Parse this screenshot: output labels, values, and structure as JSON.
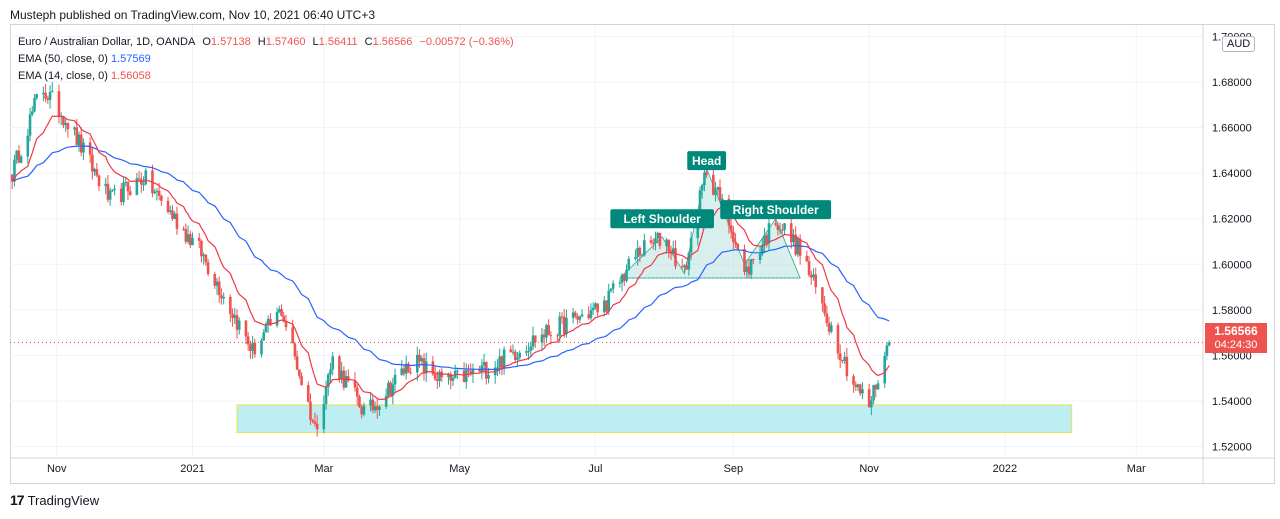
{
  "header": {
    "published": "Musteph published on TradingView.com, Nov 10, 2021 06:40 UTC+3"
  },
  "legend": {
    "symbol": "Euro / Australian Dollar, 1D, OANDA",
    "open_key": "O",
    "open": "1.57138",
    "high_key": "H",
    "high": "1.57460",
    "low_key": "L",
    "low": "1.56411",
    "close_key": "C",
    "close": "1.56566",
    "change": "−0.00572 (−0.36%)",
    "ema50_label": "EMA (50, close, 0)",
    "ema50_value": "1.57569",
    "ema14_label": "EMA (14, close, 0)",
    "ema14_value": "1.56058"
  },
  "currency": "AUD",
  "last_price": {
    "price": "1.56566",
    "countdown": "04:24:30"
  },
  "footer": {
    "brand": "TradingView"
  },
  "colors": {
    "up": "#26a69a",
    "down": "#ef5350",
    "ema50": "#2962ff",
    "ema14": "#f23645",
    "zone": "#b2ebf2",
    "annotation": "#00897b"
  },
  "chart_data": {
    "type": "candlestick",
    "ylim": [
      1.515,
      1.705
    ],
    "y_ticks": [
      "1.70000",
      "1.68000",
      "1.66000",
      "1.64000",
      "1.62000",
      "1.60000",
      "1.58000",
      "1.56000",
      "1.54000",
      "1.52000"
    ],
    "y_tick_values": [
      1.7,
      1.68,
      1.66,
      1.64,
      1.62,
      1.6,
      1.58,
      1.56,
      1.54,
      1.52
    ],
    "x_ticks": [
      "Nov",
      "2021",
      "Mar",
      "May",
      "Jul",
      "Sep",
      "Nov",
      "2022",
      "Mar"
    ],
    "x_tick_dates": [
      "2020-11-01",
      "2021-01-01",
      "2021-03-01",
      "2021-05-01",
      "2021-07-01",
      "2021-09-01",
      "2021-11-01",
      "2022-01-01",
      "2022-03-01"
    ],
    "x_range": [
      "2020-10-11",
      "2022-03-31"
    ],
    "annotations": [
      {
        "text": "Head",
        "date": "2021-08-20",
        "price": 1.6455
      },
      {
        "text": "Left Shoulder",
        "date": "2021-07-31",
        "price": 1.62
      },
      {
        "text": "Right Shoulder",
        "date": "2021-09-20",
        "price": 1.624
      }
    ],
    "support_zone": {
      "start": "2021-01-21",
      "end": "2022-01-31",
      "top": 1.5383,
      "bottom": 1.5262
    },
    "pattern_neckline": 1.594,
    "key_prices": [
      {
        "date": "2020-10-12",
        "price": 1.64
      },
      {
        "date": "2020-10-25",
        "price": 1.678
      },
      {
        "date": "2020-11-05",
        "price": 1.664
      },
      {
        "date": "2020-11-25",
        "price": 1.628
      },
      {
        "date": "2020-12-10",
        "price": 1.638
      },
      {
        "date": "2021-01-05",
        "price": 1.605
      },
      {
        "date": "2021-01-28",
        "price": 1.562
      },
      {
        "date": "2021-02-10",
        "price": 1.58
      },
      {
        "date": "2021-02-25",
        "price": 1.528
      },
      {
        "date": "2021-03-05",
        "price": 1.558
      },
      {
        "date": "2021-03-20",
        "price": 1.534
      },
      {
        "date": "2021-04-10",
        "price": 1.558
      },
      {
        "date": "2021-04-25",
        "price": 1.548
      },
      {
        "date": "2021-05-15",
        "price": 1.555
      },
      {
        "date": "2021-06-05",
        "price": 1.568
      },
      {
        "date": "2021-06-20",
        "price": 1.575
      },
      {
        "date": "2021-07-05",
        "price": 1.582
      },
      {
        "date": "2021-07-20",
        "price": 1.605
      },
      {
        "date": "2021-08-01",
        "price": 1.612
      },
      {
        "date": "2021-08-10",
        "price": 1.596
      },
      {
        "date": "2021-08-20",
        "price": 1.642
      },
      {
        "date": "2021-09-01",
        "price": 1.614
      },
      {
        "date": "2021-09-06",
        "price": 1.595
      },
      {
        "date": "2021-09-20",
        "price": 1.62
      },
      {
        "date": "2021-10-01",
        "price": 1.606
      },
      {
        "date": "2021-10-15",
        "price": 1.572
      },
      {
        "date": "2021-10-25",
        "price": 1.548
      },
      {
        "date": "2021-11-01",
        "price": 1.538
      },
      {
        "date": "2021-11-10",
        "price": 1.5657
      }
    ],
    "last_close": 1.56566
  }
}
